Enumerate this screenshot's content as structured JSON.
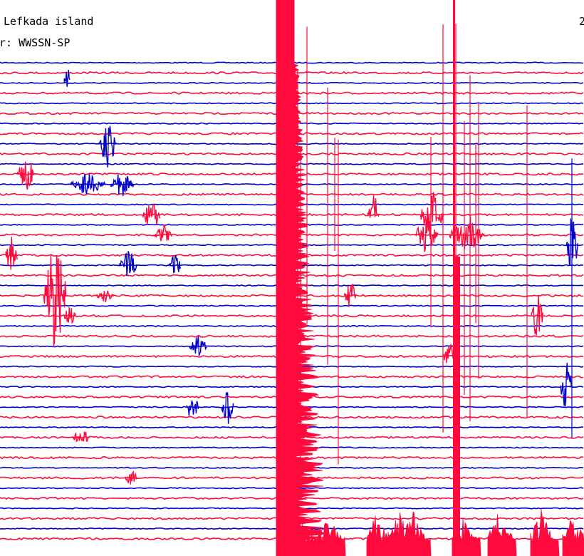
{
  "header": {
    "station_title": "Lefkada island",
    "filter_label": "er: WWSSN-SP",
    "date_fragment": "2"
  },
  "colors": {
    "trace_red": "#ff0a3c",
    "trace_blue": "#0000cc",
    "text": "#000000",
    "background": "#ffffff"
  },
  "chart_data": {
    "type": "line",
    "kind": "helicorder",
    "trace_count": 24,
    "trace_colors": [
      "red",
      "blue"
    ],
    "events": [
      {
        "trace": 1,
        "column": 0.115,
        "amplitude": 0.8,
        "duration": 0.01,
        "color": "blue"
      },
      {
        "trace": 4,
        "column": 0.185,
        "amplitude": 1.2,
        "duration": 0.03,
        "color": "blue"
      },
      {
        "trace": 5,
        "column": 0.045,
        "amplitude": 0.9,
        "duration": 0.03,
        "color": "red"
      },
      {
        "trace": 6,
        "column": 0.15,
        "amplitude": 0.5,
        "duration": 0.06,
        "color": "blue"
      },
      {
        "trace": 6,
        "column": 0.21,
        "amplitude": 0.6,
        "duration": 0.04,
        "color": "blue"
      },
      {
        "trace": 7,
        "column": 0.26,
        "amplitude": 0.8,
        "duration": 0.03,
        "color": "red"
      },
      {
        "trace": 8,
        "column": 0.28,
        "amplitude": 0.5,
        "duration": 0.03,
        "color": "red"
      },
      {
        "trace": 9,
        "column": 0.02,
        "amplitude": 1.0,
        "duration": 0.02,
        "color": "red"
      },
      {
        "trace": 10,
        "column": 0.22,
        "amplitude": 0.7,
        "duration": 0.03,
        "color": "blue"
      },
      {
        "trace": 10,
        "column": 0.3,
        "amplitude": 0.6,
        "duration": 0.02,
        "color": "blue"
      },
      {
        "trace": 11,
        "column": 0.095,
        "amplitude": 2.5,
        "duration": 0.04,
        "color": "red"
      },
      {
        "trace": 11,
        "column": 0.18,
        "amplitude": 0.3,
        "duration": 0.03,
        "color": "red"
      },
      {
        "trace": 12,
        "column": 0.12,
        "amplitude": 0.5,
        "duration": 0.02,
        "color": "red"
      },
      {
        "trace": 14,
        "column": 0.34,
        "amplitude": 0.5,
        "duration": 0.03,
        "color": "blue"
      },
      {
        "trace": 17,
        "column": 0.33,
        "amplitude": 0.8,
        "duration": 0.02,
        "color": "blue"
      },
      {
        "trace": 17,
        "column": 0.39,
        "amplitude": 0.8,
        "duration": 0.02,
        "color": "blue"
      },
      {
        "trace": 18,
        "column": 0.14,
        "amplitude": 0.4,
        "duration": 0.03,
        "color": "red"
      },
      {
        "trace": 20,
        "column": 0.225,
        "amplitude": 0.4,
        "duration": 0.02,
        "color": "red"
      },
      {
        "trace": 7,
        "column": 0.64,
        "amplitude": 1.0,
        "duration": 0.02,
        "color": "red"
      },
      {
        "trace": 7,
        "column": 0.74,
        "amplitude": 1.2,
        "duration": 0.04,
        "color": "red"
      },
      {
        "trace": 8,
        "column": 0.73,
        "amplitude": 0.8,
        "duration": 0.04,
        "color": "red"
      },
      {
        "trace": 8,
        "column": 0.8,
        "amplitude": 0.9,
        "duration": 0.06,
        "color": "red"
      },
      {
        "trace": 9,
        "column": 0.98,
        "amplitude": 1.5,
        "duration": 0.02,
        "color": "blue"
      },
      {
        "trace": 11,
        "column": 0.6,
        "amplitude": 0.7,
        "duration": 0.02,
        "color": "red"
      },
      {
        "trace": 12,
        "column": 0.92,
        "amplitude": 1.1,
        "duration": 0.02,
        "color": "red"
      },
      {
        "trace": 14,
        "column": 0.77,
        "amplitude": 0.6,
        "duration": 0.02,
        "color": "red"
      },
      {
        "trace": 16,
        "column": 0.97,
        "amplitude": 1.2,
        "duration": 0.02,
        "color": "blue"
      }
    ],
    "large_event": {
      "start_column": 0.475,
      "coda_traces": 24
    }
  }
}
